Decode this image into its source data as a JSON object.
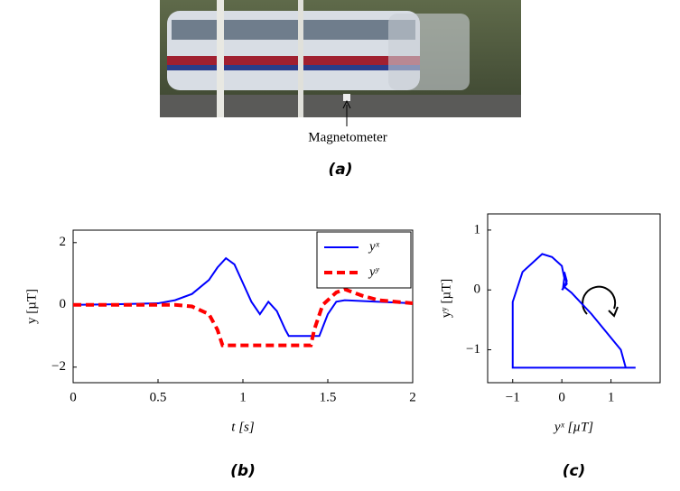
{
  "photo": {
    "annotation": "Magnetometer",
    "caption": "(a)"
  },
  "chart_data": [
    {
      "type": "line",
      "caption": "(b)",
      "xlabel": "t [s]",
      "ylabel": "y [µT]",
      "xlim": [
        0,
        2
      ],
      "ylim": [
        -2.5,
        2.4
      ],
      "xticks": [
        0,
        0.5,
        1,
        1.5,
        2
      ],
      "yticks": [
        {
          "value": -2,
          "label": "−2"
        },
        0,
        2
      ],
      "legend": "upper right",
      "series": [
        {
          "name": "yˣ",
          "color": "#0000ff",
          "dash": "solid",
          "x": [
            0,
            0.25,
            0.5,
            0.6,
            0.7,
            0.8,
            0.85,
            0.9,
            0.95,
            1.0,
            1.05,
            1.1,
            1.15,
            1.2,
            1.25,
            1.27,
            1.4,
            1.45,
            1.5,
            1.55,
            1.6,
            1.8,
            2
          ],
          "values": [
            0,
            0.02,
            0.05,
            0.15,
            0.35,
            0.8,
            1.2,
            1.5,
            1.3,
            0.7,
            0.1,
            -0.3,
            0.1,
            -0.2,
            -0.8,
            -1.0,
            -1.0,
            -1.0,
            -0.3,
            0.1,
            0.15,
            0.1,
            0.05
          ]
        },
        {
          "name": "yʸ",
          "color": "#ff0000",
          "dash": "dashed",
          "x": [
            0,
            0.6,
            0.7,
            0.8,
            0.85,
            0.88,
            1.0,
            1.4,
            1.42,
            1.47,
            1.55,
            1.6,
            1.7,
            1.8,
            2
          ],
          "values": [
            0,
            0,
            -0.05,
            -0.3,
            -0.8,
            -1.3,
            -1.3,
            -1.3,
            -0.8,
            0,
            0.4,
            0.5,
            0.3,
            0.15,
            0.05
          ]
        }
      ]
    },
    {
      "type": "line",
      "caption": "(c)",
      "xlabel": "yˣ [µT]",
      "ylabel": "yʸ [µT]",
      "xlim": [
        -1.51,
        2.0
      ],
      "ylim": [
        -1.55,
        1.27
      ],
      "xticks": [
        {
          "value": -1,
          "label": "−1"
        },
        0,
        1
      ],
      "yticks": [
        {
          "value": -1,
          "label": "−1"
        },
        0,
        1
      ],
      "series": [
        {
          "color": "#0000ff",
          "dash": "solid",
          "x": [
            0,
            0.1,
            0.05,
            0.1,
            0.05,
            0.2,
            0.6,
            0.9,
            1.2,
            1.3,
            1.5,
            0,
            -1,
            -1,
            -0.8,
            -0.4,
            -0.2,
            0,
            0.05,
            0.02
          ],
          "values": [
            0,
            0.1,
            0.3,
            0.15,
            0.05,
            -0.05,
            -0.4,
            -0.7,
            -1.0,
            -1.3,
            -1.3,
            -1.3,
            -1.3,
            -0.2,
            0.3,
            0.6,
            0.55,
            0.4,
            0.2,
            0
          ]
        }
      ]
    }
  ]
}
